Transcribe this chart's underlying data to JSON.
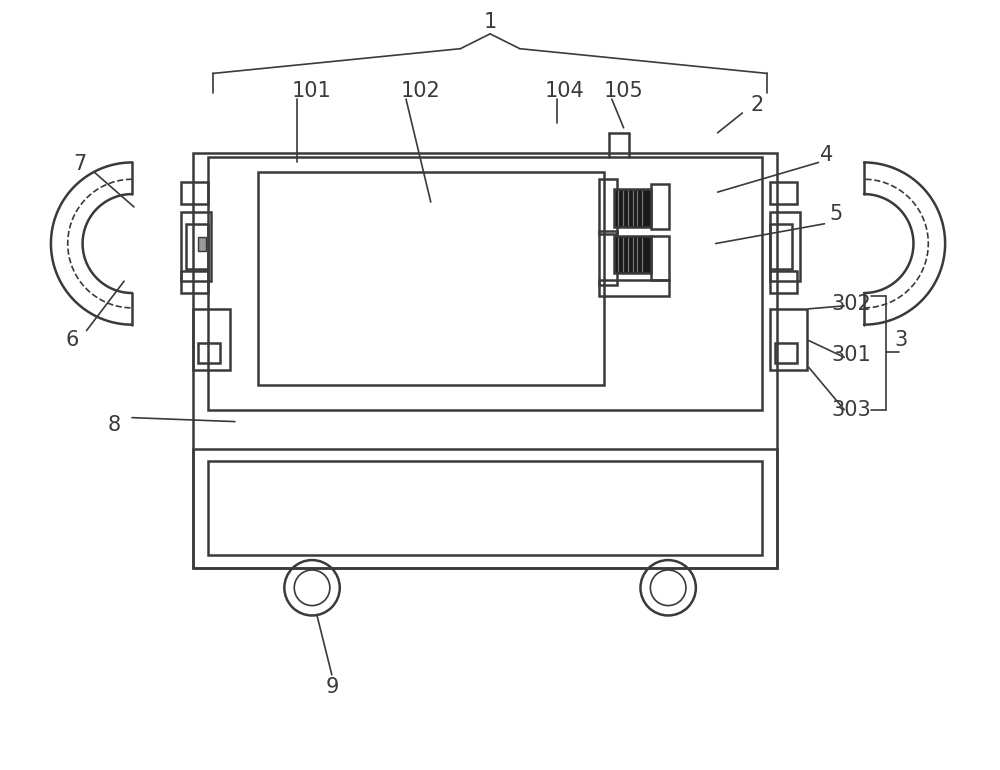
{
  "bg_color": "#ffffff",
  "line_color": "#3a3a3a",
  "dark_fill": "#1a1a1a",
  "fig_width": 10.0,
  "fig_height": 7.7
}
